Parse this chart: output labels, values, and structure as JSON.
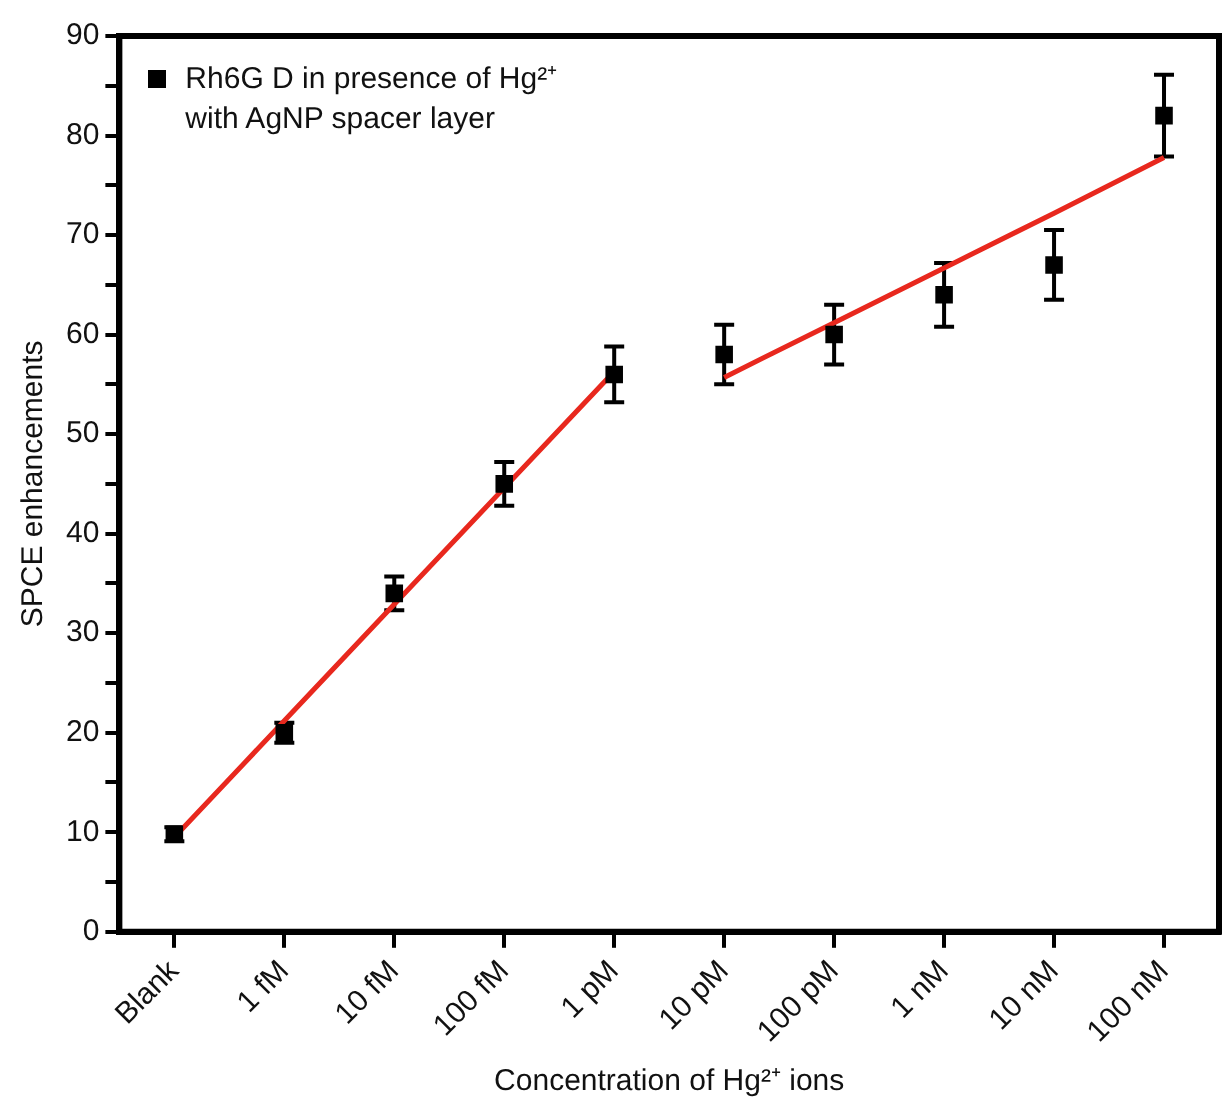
{
  "chart_data": {
    "type": "scatter",
    "xlabel": "Concentration of Hg²⁺ ions",
    "ylabel": "SPCE enhancements",
    "categories": [
      "Blank",
      "1 fM",
      "10 fM",
      "100 fM",
      "1 pM",
      "10 pM",
      "100 pM",
      "1 nM",
      "10 nM",
      "100 nM"
    ],
    "ylim": [
      0,
      90
    ],
    "yticks": [
      0,
      {
        "value": 5,
        "label": null
      },
      10,
      {
        "value": 15,
        "label": null
      },
      20,
      {
        "value": 25,
        "label": null
      },
      30,
      {
        "value": 35,
        "label": null
      },
      40,
      {
        "value": 45,
        "label": null
      },
      50,
      {
        "value": 55,
        "label": null
      },
      60,
      {
        "value": 65,
        "label": null
      },
      70,
      {
        "value": 75,
        "label": null
      },
      80,
      {
        "value": 85,
        "label": null
      },
      90
    ],
    "grid": false,
    "legend": "top left",
    "series": [
      {
        "name": "Rh6G D in presence of Hg²⁺ with AgNP spacer layer",
        "color": "#000000",
        "marker": "square",
        "values": [
          9.8,
          20,
          34,
          45,
          56,
          58,
          60,
          64,
          67,
          82
        ],
        "errors": [
          0.7,
          1,
          1.7,
          2.2,
          2.8,
          3,
          3,
          3.2,
          3.5,
          4.1
        ]
      },
      {
        "type": "line",
        "color": "#e8281e",
        "line_style": "solid",
        "marker": "none",
        "values": [
          9.5,
          21.2,
          32.9,
          44.6,
          56.3,
          null,
          null,
          null,
          null,
          null
        ]
      },
      {
        "type": "line",
        "color": "#e8281e",
        "line_style": "solid",
        "marker": "none",
        "values": [
          null,
          null,
          null,
          null,
          null,
          55.7,
          61.2,
          66.7,
          72.2,
          77.8
        ]
      }
    ]
  }
}
